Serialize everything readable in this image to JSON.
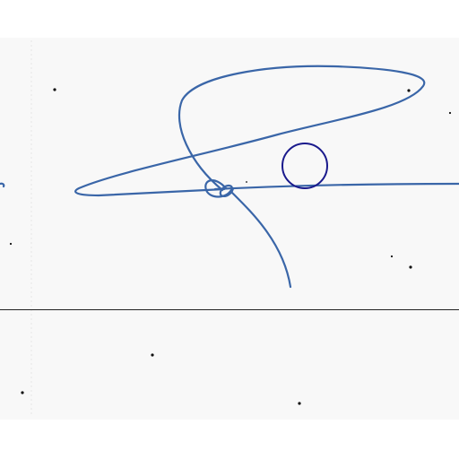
{
  "document": {
    "kind": "signature-scan",
    "ink_color": "#3a66a8",
    "annotation_color": "#1a1a8c",
    "paper_color": "#f8f8f8"
  },
  "annotation": {
    "shape": "circle"
  },
  "speckles_count_visible": 11
}
